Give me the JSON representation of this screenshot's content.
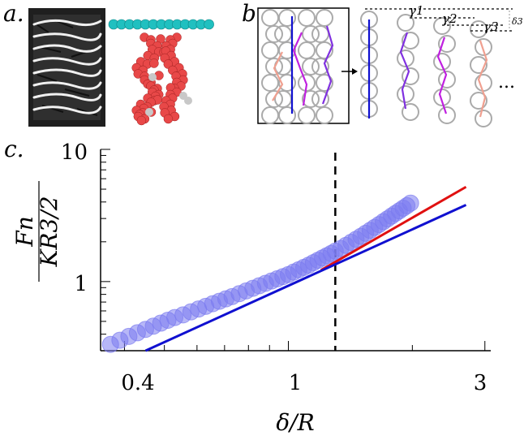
{
  "panels": {
    "a": {
      "label": "a."
    },
    "b": {
      "label": "b.",
      "gamma_labels": [
        "γ1",
        "γ2",
        "γ3"
      ],
      "delta_label": "δ3",
      "ellipsis": "...",
      "chain_colors": [
        "#1010d0",
        "#c020e0",
        "#8030e0",
        "#f0a090"
      ]
    },
    "c": {
      "label": "c."
    }
  },
  "chart_data": {
    "type": "scatter",
    "xscale": "log",
    "yscale": "log",
    "xlim": [
      0.35,
      3.1
    ],
    "ylim": [
      0.3,
      10
    ],
    "xticks": [
      0.4,
      1,
      3
    ],
    "xtick_labels": [
      "0.4",
      "1",
      "3"
    ],
    "yticks": [
      1,
      10
    ],
    "ytick_labels": [
      "1",
      "10"
    ],
    "xlabel": "δ/R",
    "ylabel_num": "Fn",
    "ylabel_den": "KR3/2",
    "vline_x": 1.3,
    "series": [
      {
        "kind": "markers",
        "color": "#7b7bf0",
        "points": [
          [
            0.37,
            0.335
          ],
          [
            0.39,
            0.36
          ],
          [
            0.41,
            0.385
          ],
          [
            0.43,
            0.41
          ],
          [
            0.45,
            0.435
          ],
          [
            0.47,
            0.46
          ],
          [
            0.49,
            0.485
          ],
          [
            0.51,
            0.51
          ],
          [
            0.53,
            0.535
          ],
          [
            0.555,
            0.56
          ],
          [
            0.58,
            0.59
          ],
          [
            0.605,
            0.62
          ],
          [
            0.63,
            0.65
          ],
          [
            0.655,
            0.68
          ],
          [
            0.68,
            0.71
          ],
          [
            0.705,
            0.74
          ],
          [
            0.73,
            0.77
          ],
          [
            0.76,
            0.81
          ],
          [
            0.79,
            0.85
          ],
          [
            0.82,
            0.89
          ],
          [
            0.85,
            0.93
          ],
          [
            0.88,
            0.97
          ],
          [
            0.91,
            1.01
          ],
          [
            0.94,
            1.05
          ],
          [
            0.97,
            1.09
          ],
          [
            1.0,
            1.13
          ],
          [
            1.03,
            1.18
          ],
          [
            1.06,
            1.23
          ],
          [
            1.09,
            1.28
          ],
          [
            1.12,
            1.33
          ],
          [
            1.15,
            1.39
          ],
          [
            1.18,
            1.45
          ],
          [
            1.21,
            1.51
          ],
          [
            1.24,
            1.57
          ],
          [
            1.27,
            1.63
          ],
          [
            1.3,
            1.7
          ],
          [
            1.34,
            1.78
          ],
          [
            1.38,
            1.88
          ],
          [
            1.42,
            1.98
          ],
          [
            1.46,
            2.09
          ],
          [
            1.5,
            2.2
          ],
          [
            1.54,
            2.32
          ],
          [
            1.58,
            2.44
          ],
          [
            1.62,
            2.57
          ],
          [
            1.66,
            2.7
          ],
          [
            1.7,
            2.84
          ],
          [
            1.74,
            2.98
          ],
          [
            1.78,
            3.13
          ],
          [
            1.82,
            3.28
          ],
          [
            1.86,
            3.43
          ],
          [
            1.9,
            3.59
          ],
          [
            1.94,
            3.75
          ],
          [
            1.98,
            3.92
          ]
        ]
      },
      {
        "kind": "line",
        "color": "#e01010",
        "x": [
          1.2,
          2.7
        ],
        "y": [
          1.22,
          5.2
        ]
      },
      {
        "kind": "line",
        "color": "#1010d0",
        "x": [
          0.45,
          2.7
        ],
        "y": [
          0.3,
          3.8
        ]
      }
    ]
  }
}
